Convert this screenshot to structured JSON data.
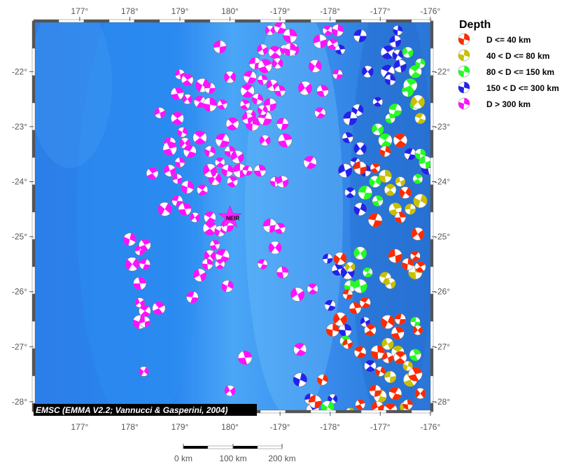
{
  "map": {
    "lon_range": [
      176.08,
      -175.97
    ],
    "lat_range": [
      -21.08,
      -28.18
    ],
    "lon_ticks": [
      {
        "v": 177,
        "label": "177°"
      },
      {
        "v": 178,
        "label": "178°"
      },
      {
        "v": 179,
        "label": "179°"
      },
      {
        "v": 180,
        "label": "180°"
      },
      {
        "v": -179,
        "label": "-179°"
      },
      {
        "v": -178,
        "label": "-178°"
      },
      {
        "v": -177,
        "label": "-177°"
      },
      {
        "v": -176,
        "label": "-176°"
      }
    ],
    "lat_ticks": [
      {
        "v": -22,
        "label": "-22°"
      },
      {
        "v": -23,
        "label": "-23°"
      },
      {
        "v": -24,
        "label": "-24°"
      },
      {
        "v": -25,
        "label": "-25°"
      },
      {
        "v": -26,
        "label": "-26°"
      },
      {
        "v": -27,
        "label": "-27°"
      },
      {
        "v": -28,
        "label": "-28°"
      }
    ],
    "attribution": "EMSC (EMMA V2.2; Vannucci & Gasperini, 2004)",
    "station": {
      "label": "NEIR",
      "lon": 180.0,
      "lat": -24.65,
      "color": "#ff22ff"
    }
  },
  "legend": {
    "title": "Depth",
    "classes": [
      {
        "label": "D <= 40 km",
        "color": "#ff2a00"
      },
      {
        "label": "40 < D <= 80 km",
        "color": "#c8c000"
      },
      {
        "label": "80 < D <= 150 km",
        "color": "#22ff22"
      },
      {
        "label": "150 < D <= 300 km",
        "color": "#2222ee"
      },
      {
        "label": "D > 300 km",
        "color": "#ff11ff"
      }
    ]
  },
  "scale_bar": {
    "labels": [
      "0 km",
      "100 km",
      "200 km"
    ]
  },
  "events": [
    [
      -179.2,
      -21.25,
      4
    ],
    [
      -179.0,
      -21.2,
      4
    ],
    [
      -178.8,
      -21.35,
      4
    ],
    [
      -179.35,
      -21.6,
      4
    ],
    [
      -179.1,
      -21.65,
      4
    ],
    [
      -178.9,
      -21.6,
      4
    ],
    [
      -179.5,
      -21.85,
      4
    ],
    [
      -179.3,
      -21.9,
      4
    ],
    [
      -179.05,
      -21.85,
      4
    ],
    [
      -179.6,
      -22.1,
      4
    ],
    [
      -179.35,
      -22.15,
      4
    ],
    [
      -179.15,
      -22.25,
      4
    ],
    [
      -179.65,
      -22.35,
      4
    ],
    [
      -179.45,
      -22.5,
      4
    ],
    [
      -179.2,
      -22.6,
      4
    ],
    [
      -179.7,
      -22.6,
      4
    ],
    [
      -179.6,
      -22.8,
      4
    ],
    [
      -179.3,
      -22.85,
      4
    ],
    [
      -179.0,
      -22.35,
      4
    ],
    [
      -178.75,
      -21.6,
      4
    ],
    [
      -178.05,
      -21.25,
      4
    ],
    [
      -177.85,
      -21.25,
      4
    ],
    [
      -178.2,
      -21.45,
      4
    ],
    [
      -177.95,
      -21.5,
      4
    ],
    [
      -178.3,
      -21.9,
      4
    ],
    [
      -177.85,
      -22.05,
      4
    ],
    [
      -178.15,
      -22.35,
      4
    ],
    [
      -178.5,
      -22.3,
      4
    ],
    [
      -178.2,
      -22.75,
      4
    ],
    [
      -178.8,
      -21.6,
      4
    ],
    [
      179.0,
      -22.05,
      4
    ],
    [
      179.15,
      -22.15,
      4
    ],
    [
      179.45,
      -22.25,
      4
    ],
    [
      179.6,
      -22.3,
      4
    ],
    [
      178.95,
      -22.4,
      4
    ],
    [
      179.15,
      -22.5,
      4
    ],
    [
      179.4,
      -22.55,
      4
    ],
    [
      179.6,
      -22.6,
      4
    ],
    [
      178.6,
      -22.75,
      4
    ],
    [
      178.95,
      -22.85,
      4
    ],
    [
      179.05,
      -23.1,
      4
    ],
    [
      178.8,
      -23.3,
      4
    ],
    [
      178.8,
      -23.4,
      4
    ],
    [
      179.1,
      -23.3,
      4
    ],
    [
      179.2,
      -23.45,
      4
    ],
    [
      179.0,
      -23.65,
      4
    ],
    [
      178.8,
      -23.8,
      4
    ],
    [
      179.4,
      -23.2,
      4
    ],
    [
      179.6,
      -23.45,
      4
    ],
    [
      179.8,
      -21.55,
      4
    ],
    [
      179.85,
      -22.6,
      4
    ],
    [
      180.0,
      -22.1,
      4
    ],
    [
      179.85,
      -23.25,
      4
    ],
    [
      180.0,
      -23.45,
      4
    ],
    [
      -179.85,
      -23.55,
      4
    ],
    [
      179.8,
      -23.65,
      4
    ],
    [
      179.95,
      -23.8,
      4
    ],
    [
      -179.8,
      -23.8,
      4
    ],
    [
      -179.95,
      -24.0,
      4
    ],
    [
      179.7,
      -23.95,
      4
    ],
    [
      -179.65,
      -23.8,
      4
    ],
    [
      -179.4,
      -23.8,
      4
    ],
    [
      179.6,
      -23.8,
      4
    ],
    [
      179.45,
      -24.15,
      4
    ],
    [
      179.15,
      -24.1,
      4
    ],
    [
      178.95,
      -23.95,
      4
    ],
    [
      178.45,
      -23.85,
      4
    ],
    [
      178.7,
      -24.5,
      4
    ],
    [
      178.95,
      -24.35,
      4
    ],
    [
      179.1,
      -24.5,
      4
    ],
    [
      179.3,
      -24.65,
      4
    ],
    [
      179.6,
      -24.65,
      4
    ],
    [
      -179.55,
      -22.95,
      4
    ],
    [
      -179.65,
      -22.85,
      4
    ],
    [
      -179.95,
      -22.95,
      4
    ],
    [
      -179.35,
      -22.7,
      4
    ],
    [
      -178.95,
      -22.95,
      4
    ],
    [
      -178.9,
      -23.25,
      4
    ],
    [
      -179.3,
      -23.25,
      4
    ],
    [
      -178.4,
      -23.65,
      4
    ],
    [
      -179.1,
      -24.0,
      4
    ],
    [
      -178.95,
      -24.0,
      4
    ],
    [
      179.6,
      -24.85,
      4
    ],
    [
      179.8,
      -24.9,
      4
    ],
    [
      179.95,
      -24.8,
      4
    ],
    [
      179.7,
      -25.15,
      4
    ],
    [
      179.6,
      -25.35,
      4
    ],
    [
      179.85,
      -25.35,
      4
    ],
    [
      179.55,
      -25.5,
      4
    ],
    [
      179.4,
      -25.7,
      4
    ],
    [
      179.8,
      -25.5,
      4
    ],
    [
      179.95,
      -25.9,
      4
    ],
    [
      -179.2,
      -24.8,
      4
    ],
    [
      -179.0,
      -24.85,
      4
    ],
    [
      -179.1,
      -25.2,
      4
    ],
    [
      -179.35,
      -25.5,
      4
    ],
    [
      -178.95,
      -25.65,
      4
    ],
    [
      -178.65,
      -26.05,
      4
    ],
    [
      -178.35,
      -25.95,
      4
    ],
    [
      178.0,
      -25.05,
      4
    ],
    [
      178.2,
      -25.25,
      4
    ],
    [
      178.3,
      -25.15,
      4
    ],
    [
      178.05,
      -25.5,
      4
    ],
    [
      178.3,
      -25.5,
      4
    ],
    [
      178.2,
      -25.85,
      4
    ],
    [
      178.2,
      -26.2,
      4
    ],
    [
      178.3,
      -26.35,
      4
    ],
    [
      178.2,
      -26.55,
      4
    ],
    [
      178.3,
      -26.55,
      4
    ],
    [
      178.58,
      -26.3,
      4
    ],
    [
      178.28,
      -27.45,
      4
    ],
    [
      179.25,
      -26.1,
      4
    ],
    [
      -179.7,
      -27.2,
      4
    ],
    [
      180.0,
      -27.8,
      4
    ],
    [
      -178.6,
      -27.05,
      4
    ],
    [
      -176.65,
      -21.25,
      3
    ],
    [
      -176.7,
      -21.45,
      3
    ],
    [
      -176.85,
      -21.65,
      3
    ],
    [
      -176.65,
      -21.7,
      3
    ],
    [
      -177.4,
      -21.35,
      3
    ],
    [
      -177.8,
      -21.6,
      3
    ],
    [
      -177.25,
      -22.0,
      3
    ],
    [
      -176.85,
      -22.0,
      3
    ],
    [
      -176.8,
      -22.15,
      3
    ],
    [
      -176.6,
      -21.9,
      3
    ],
    [
      -177.05,
      -22.55,
      3
    ],
    [
      -177.45,
      -22.7,
      3
    ],
    [
      -177.6,
      -22.85,
      3
    ],
    [
      -177.65,
      -23.2,
      3
    ],
    [
      -177.4,
      -23.4,
      3
    ],
    [
      -177.5,
      -23.65,
      3
    ],
    [
      -177.3,
      -23.8,
      3
    ],
    [
      -177.7,
      -23.8,
      3
    ],
    [
      -177.6,
      -24.2,
      3
    ],
    [
      -177.4,
      -24.5,
      3
    ],
    [
      -178.05,
      -25.4,
      3
    ],
    [
      -177.85,
      -25.6,
      3
    ],
    [
      -177.65,
      -25.65,
      3
    ],
    [
      -178.0,
      -26.25,
      3
    ],
    [
      -177.7,
      -26.7,
      3
    ],
    [
      -177.3,
      -26.55,
      3
    ],
    [
      -177.2,
      -27.35,
      3
    ],
    [
      -178.6,
      -27.6,
      3
    ],
    [
      -178.4,
      -27.95,
      3
    ],
    [
      -178.35,
      -28.15,
      3
    ],
    [
      -177.95,
      -27.95,
      3
    ],
    [
      -176.4,
      -23.5,
      3
    ],
    [
      -176.05,
      -23.75,
      3
    ],
    [
      -176.45,
      -21.65,
      2
    ],
    [
      -176.3,
      -22.0,
      2
    ],
    [
      -176.2,
      -21.85,
      2
    ],
    [
      -176.45,
      -22.35,
      2
    ],
    [
      -176.4,
      -22.25,
      2
    ],
    [
      -176.3,
      -22.6,
      2
    ],
    [
      -176.7,
      -22.7,
      2
    ],
    [
      -176.8,
      -22.85,
      2
    ],
    [
      -177.05,
      -23.05,
      2
    ],
    [
      -176.9,
      -23.25,
      2
    ],
    [
      -176.2,
      -23.5,
      2
    ],
    [
      -176.1,
      -23.65,
      2
    ],
    [
      -176.25,
      -23.95,
      2
    ],
    [
      -177.1,
      -24.0,
      2
    ],
    [
      -177.3,
      -24.2,
      2
    ],
    [
      -177.05,
      -24.35,
      2
    ],
    [
      -177.4,
      -25.3,
      2
    ],
    [
      -177.25,
      -25.65,
      2
    ],
    [
      -177.6,
      -25.9,
      2
    ],
    [
      -177.4,
      -25.9,
      2
    ],
    [
      -177.7,
      -26.9,
      2
    ],
    [
      -178.05,
      -28.1,
      2
    ],
    [
      -176.3,
      -26.55,
      2
    ],
    [
      -176.3,
      -27.15,
      2
    ],
    [
      -176.25,
      -22.55,
      1
    ],
    [
      -176.2,
      -22.85,
      1
    ],
    [
      -176.9,
      -23.9,
      1
    ],
    [
      -176.6,
      -24.0,
      1
    ],
    [
      -176.8,
      -24.15,
      1
    ],
    [
      -176.2,
      -24.35,
      1
    ],
    [
      -176.4,
      -24.5,
      1
    ],
    [
      -176.7,
      -24.5,
      1
    ],
    [
      -177.6,
      -25.55,
      1
    ],
    [
      -176.9,
      -25.75,
      1
    ],
    [
      -176.3,
      -25.65,
      1
    ],
    [
      -176.8,
      -25.85,
      1
    ],
    [
      -176.65,
      -27.1,
      1
    ],
    [
      -176.45,
      -27.35,
      1
    ],
    [
      -176.8,
      -27.55,
      1
    ],
    [
      -176.4,
      -27.6,
      1
    ],
    [
      -176.5,
      -28.1,
      1
    ],
    [
      -177.0,
      -27.9,
      1
    ],
    [
      -177.6,
      -28.2,
      1
    ],
    [
      -176.85,
      -26.95,
      1
    ],
    [
      -176.6,
      -23.25,
      0
    ],
    [
      -176.9,
      -23.45,
      0
    ],
    [
      -177.4,
      -23.75,
      0
    ],
    [
      -177.1,
      -23.75,
      0
    ],
    [
      -176.5,
      -24.2,
      0
    ],
    [
      -177.1,
      -24.7,
      0
    ],
    [
      -176.6,
      -24.65,
      0
    ],
    [
      -176.25,
      -24.95,
      0
    ],
    [
      -176.3,
      -25.35,
      0
    ],
    [
      -176.45,
      -25.5,
      0
    ],
    [
      -176.7,
      -25.35,
      0
    ],
    [
      -176.2,
      -25.55,
      0
    ],
    [
      -177.8,
      -25.4,
      0
    ],
    [
      -177.65,
      -26.05,
      0
    ],
    [
      -177.5,
      -26.3,
      0
    ],
    [
      -177.8,
      -26.5,
      0
    ],
    [
      -177.3,
      -26.2,
      0
    ],
    [
      -177.95,
      -26.7,
      0
    ],
    [
      -177.65,
      -26.95,
      0
    ],
    [
      -177.2,
      -26.7,
      0
    ],
    [
      -176.85,
      -26.55,
      0
    ],
    [
      -176.6,
      -26.5,
      0
    ],
    [
      -176.65,
      -26.75,
      0
    ],
    [
      -176.25,
      -26.7,
      0
    ],
    [
      -177.4,
      -27.1,
      0
    ],
    [
      -177.05,
      -27.1,
      0
    ],
    [
      -176.85,
      -27.2,
      0
    ],
    [
      -176.6,
      -27.2,
      0
    ],
    [
      -177.0,
      -27.45,
      0
    ],
    [
      -177.1,
      -27.8,
      0
    ],
    [
      -176.3,
      -27.5,
      0
    ],
    [
      -176.2,
      -27.85,
      0
    ],
    [
      -176.7,
      -27.85,
      0
    ],
    [
      -176.45,
      -28.05,
      0
    ],
    [
      -177.05,
      -28.1,
      0
    ],
    [
      -176.8,
      -28.15,
      0
    ],
    [
      -178.15,
      -27.6,
      0
    ],
    [
      -178.3,
      -28.0,
      0
    ],
    [
      -177.4,
      -28.05,
      0
    ]
  ]
}
